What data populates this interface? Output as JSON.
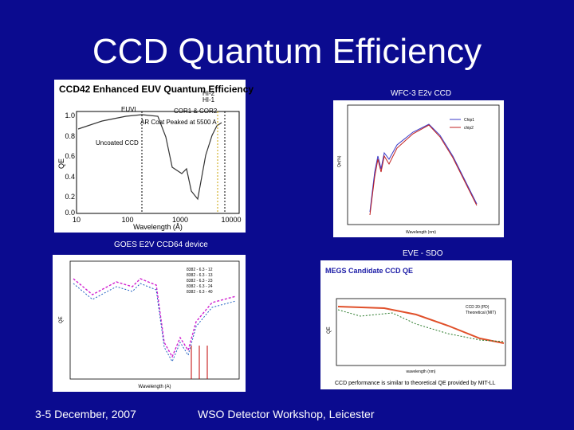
{
  "slide": {
    "title": "CCD Quantum Efficiency",
    "footer_date": "3-5 December, 2007",
    "footer_event": "WSO Detector Workshop, Leicester"
  },
  "panels": {
    "ccd42": {
      "title": "CCD42 Enhanced EUV Quantum Efficiency",
      "labels": [
        "EUVI",
        "COR1 & COR2",
        "HI-1",
        "HI-2",
        "AR Coat Peaked at 5500 A",
        "Uncoated CCD"
      ],
      "ylabel": "QE",
      "xlabel": "Wavelength (Å)",
      "yticks": [
        "1.0",
        "0.8",
        "0.6",
        "0.4",
        "0.2",
        "0.0"
      ],
      "xticks": [
        "10",
        "100",
        "1000",
        "10000"
      ]
    },
    "wfc3": {
      "caption": "WFC-3 E2v CCD",
      "legend": [
        "Chip1",
        "chip2"
      ],
      "xlabel": "Wavelength (nm)",
      "ylabel": "Qe(%)"
    },
    "goes": {
      "caption": "GOES E2V CCD64 device",
      "legend": [
        "8382 - 6.3 - 12",
        "8382 - 6.3 - 13",
        "8382 - 6.3 - 23",
        "8382 - 6.3 - 24",
        "8382 - 6.3 - 40"
      ],
      "xlabel": "Wavelength (A)",
      "ylabel": "QE"
    },
    "eve": {
      "caption": "EVE - SDO",
      "chart_title": "MEGS Candidate CCD QE",
      "legend": [
        "CCD 20 (PD)",
        "Theoretical (MIT)"
      ],
      "xlabel": "wavelength (nm)",
      "ylabel": "QE",
      "note": "CCD performance is similar to theoretical QE provided by MIT-LL"
    }
  },
  "colors": {
    "background": "#0b0b8f",
    "text": "#ffffff",
    "eve_title": "#1a1aa6"
  }
}
